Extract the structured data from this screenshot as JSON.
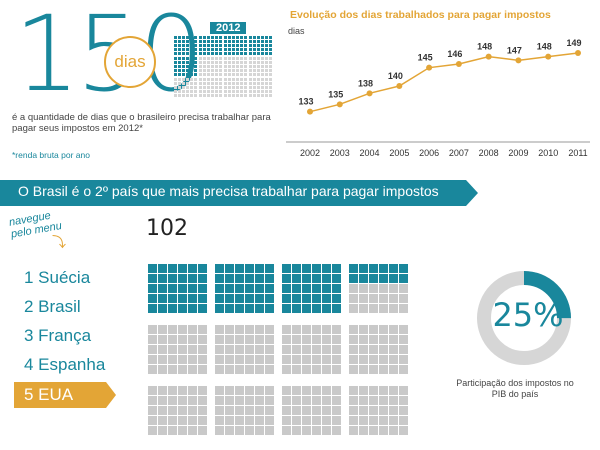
{
  "header": {
    "big_number": "150",
    "dias_label": "dias",
    "year_label": "2012",
    "description": "é a quantidade de dias que o brasileiro precisa trabalhar para pagar seus impostos em 2012*",
    "note": "*renda bruta por ano",
    "calendar": {
      "filled_days": 150,
      "total_days": 360
    }
  },
  "colors": {
    "teal": "#19879c",
    "orange": "#e3a536",
    "gray": "#c9c9c9",
    "light_gray": "#d6d6d6"
  },
  "chart_data": {
    "type": "line",
    "title": "Evolução dos dias trabalhados para pagar impostos",
    "ylabel": "dias",
    "xlabel": "",
    "categories": [
      "2002",
      "2003",
      "2004",
      "2005",
      "2006",
      "2007",
      "2008",
      "2009",
      "2010",
      "2011"
    ],
    "values": [
      133,
      135,
      138,
      140,
      145,
      146,
      148,
      147,
      148,
      149
    ],
    "ylim": [
      128,
      152
    ],
    "grid": false,
    "color": "#e3a536"
  },
  "banner": {
    "text": "O Brasil é o 2º país que mais precisa trabalhar para pagar impostos"
  },
  "navigation": {
    "hint": "navegue pelo menu",
    "items": [
      {
        "label": "1 Suécia"
      },
      {
        "label": "2 Brasil"
      },
      {
        "label": "3 França"
      },
      {
        "label": "4 Espanha"
      },
      {
        "label": "5 EUA",
        "active": true
      }
    ]
  },
  "selected_country": {
    "days": "102",
    "calendar": {
      "filled_days": 102,
      "total_days": 360
    },
    "tax_share_percent": 25,
    "tax_share_label": "25%",
    "tax_share_caption": "Participação dos impostos no PIB do país"
  }
}
